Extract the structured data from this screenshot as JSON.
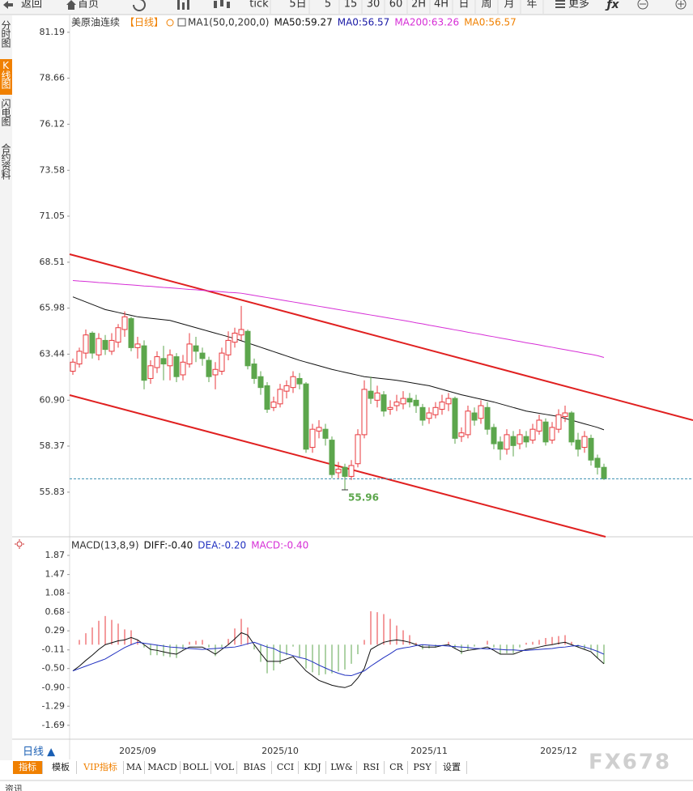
{
  "toolbar": {
    "back": "返回",
    "home": "首页",
    "periods": [
      "tick",
      "5日",
      "5",
      "15",
      "30",
      "60",
      "2H",
      "4H",
      "日",
      "周",
      "月",
      "年"
    ],
    "more": "更多"
  },
  "sidebar": [
    "分时图",
    "K线图",
    "闪电图",
    "合约资料"
  ],
  "chart_data": [
    {
      "type": "candlestick",
      "title": "美原油连续",
      "period": "【日线】",
      "indicator": "MA1(50,0,200,0)",
      "period_button": "日线 ▲",
      "categories": [
        null,
        null,
        null,
        null,
        null,
        null,
        null,
        null,
        null,
        null,
        "2025/09",
        null,
        null,
        null,
        null,
        null,
        null,
        null,
        null,
        null,
        null,
        null,
        null,
        null,
        null,
        null,
        null,
        null,
        null,
        null,
        null,
        null,
        "2025/10",
        null,
        null,
        null,
        null,
        null,
        null,
        null,
        null,
        null,
        null,
        null,
        null,
        null,
        null,
        null,
        null,
        null,
        null,
        null,
        null,
        null,
        null,
        "2025/11",
        null,
        null,
        null,
        null,
        null,
        null,
        null,
        null,
        null,
        null,
        null,
        null,
        null,
        null,
        null,
        null,
        null,
        null,
        null,
        "2025/12",
        null,
        null,
        null,
        null,
        null,
        null,
        null
      ],
      "ylim": [
        53.37,
        81.72
      ],
      "yticks": [
        81.19,
        78.66,
        76.12,
        73.58,
        71.05,
        68.51,
        65.98,
        63.44,
        {
          "value": 60.9,
          "label": "60.90"
        },
        58.37,
        55.83
      ],
      "up_color": "#e8383d",
      "down_color": "#5ca64c",
      "candles": {
        "open": [
          62.5,
          62.9,
          63.5,
          64.6,
          63.4,
          64.2,
          63.6,
          64.1,
          64.8,
          65.4,
          63.8,
          63.9,
          62.1,
          62.7,
          63.2,
          62.8,
          63.3,
          62.3,
          62.9,
          63.9,
          63.5,
          63.1,
          62.3,
          62.5,
          63.4,
          64.1,
          64.5,
          64.7,
          62.9,
          62.2,
          61.7,
          60.5,
          60.7,
          61.4,
          61.6,
          62.1,
          61.8,
          58.3,
          59.2,
          59.3,
          58.7,
          56.9,
          57.2,
          56.7,
          57.4,
          59.0,
          61.4,
          60.9,
          61.2,
          60.4,
          60.6,
          60.7,
          61.0,
          60.9,
          60.5,
          59.9,
          60.1,
          60.4,
          60.7,
          61.0,
          58.9,
          59.0,
          60.2,
          59.9,
          60.5,
          59.4,
          58.6,
          58.2,
          58.9,
          58.5,
          58.9,
          58.7,
          59.2,
          59.7,
          58.7,
          59.3,
          60.0,
          60.2,
          58.7,
          58.3,
          58.8,
          57.7,
          57.2
        ],
        "high": [
          63.2,
          63.8,
          64.8,
          64.7,
          64.6,
          64.5,
          64.6,
          65.1,
          65.8,
          65.5,
          64.4,
          64.2,
          63.1,
          63.6,
          63.9,
          63.7,
          63.5,
          63.4,
          64.6,
          64.4,
          63.8,
          63.3,
          63.0,
          63.8,
          64.7,
          64.9,
          66.1,
          64.8,
          63.2,
          62.5,
          61.9,
          61.1,
          61.8,
          62.0,
          62.5,
          62.4,
          61.9,
          59.6,
          59.8,
          59.6,
          58.9,
          57.5,
          57.4,
          57.6,
          59.3,
          62.0,
          62.2,
          61.7,
          61.4,
          60.9,
          61.2,
          61.4,
          61.3,
          61.2,
          60.7,
          60.5,
          60.8,
          61.2,
          61.3,
          61.1,
          59.4,
          60.6,
          60.5,
          60.9,
          60.8,
          59.6,
          58.9,
          59.3,
          59.2,
          59.3,
          59.2,
          59.6,
          60.1,
          59.9,
          59.7,
          60.4,
          60.6,
          60.3,
          59.1,
          59.2,
          59.0,
          57.9,
          57.4
        ],
        "low": [
          62.3,
          62.7,
          63.2,
          63.2,
          63.1,
          63.4,
          63.4,
          63.8,
          64.4,
          63.6,
          63.2,
          61.5,
          61.8,
          62.4,
          62.0,
          62.0,
          61.9,
          62.0,
          62.7,
          63.0,
          62.8,
          61.9,
          61.5,
          62.3,
          63.1,
          63.8,
          64.2,
          62.6,
          61.8,
          61.2,
          60.2,
          60.3,
          60.5,
          61.0,
          61.3,
          61.5,
          58.0,
          58.0,
          58.8,
          58.4,
          56.6,
          56.6,
          55.96,
          56.5,
          57.2,
          58.8,
          60.7,
          60.5,
          60.0,
          60.1,
          60.3,
          60.4,
          60.5,
          60.2,
          59.5,
          59.6,
          59.9,
          60.1,
          60.3,
          58.5,
          58.6,
          58.8,
          59.5,
          59.6,
          59.0,
          58.2,
          57.6,
          57.9,
          57.8,
          58.2,
          58.3,
          58.5,
          59.0,
          58.4,
          58.5,
          59.1,
          59.7,
          58.4,
          57.8,
          58.0,
          57.3,
          56.8,
          56.5
        ],
        "close": [
          63.0,
          63.6,
          64.5,
          63.5,
          64.3,
          63.7,
          64.2,
          64.9,
          65.5,
          63.8,
          64.0,
          62.0,
          62.8,
          63.3,
          62.9,
          63.4,
          62.2,
          63.0,
          64.0,
          63.6,
          63.2,
          62.2,
          62.6,
          63.5,
          64.2,
          64.6,
          64.8,
          62.8,
          62.1,
          61.6,
          60.4,
          60.8,
          61.5,
          61.7,
          62.2,
          61.8,
          58.2,
          59.3,
          59.4,
          58.8,
          56.8,
          57.1,
          56.7,
          57.3,
          59.0,
          61.5,
          61.0,
          61.3,
          60.3,
          60.5,
          60.8,
          61.0,
          60.8,
          60.6,
          59.8,
          60.2,
          60.5,
          60.8,
          61.0,
          58.8,
          59.1,
          60.3,
          59.8,
          60.6,
          59.3,
          58.5,
          58.2,
          59.0,
          58.4,
          59.0,
          58.6,
          59.3,
          59.8,
          58.6,
          59.4,
          60.1,
          60.2,
          58.6,
          58.2,
          58.9,
          57.6,
          57.2,
          56.57
        ]
      },
      "low_annotation_index": 42,
      "series": [
        {
          "name": "MA50:59.27",
          "color": "#111111",
          "values": [
            66.6,
            66.46,
            66.32,
            66.18,
            66.04,
            65.9,
            65.82,
            65.74,
            65.66,
            65.58,
            65.5,
            65.46,
            65.42,
            65.38,
            65.34,
            65.3,
            65.2,
            65.1,
            65.0,
            64.9,
            64.8,
            64.7,
            64.6,
            64.5,
            64.4,
            64.3,
            64.18,
            64.06,
            63.94,
            63.82,
            63.7,
            63.58,
            63.46,
            63.34,
            63.22,
            63.1,
            63.0,
            62.9,
            62.8,
            62.7,
            62.6,
            62.52,
            62.44,
            62.36,
            62.28,
            62.2,
            62.16,
            62.12,
            62.08,
            62.04,
            62.0,
            61.94,
            61.88,
            61.82,
            61.76,
            61.7,
            61.6,
            61.5,
            61.4,
            61.3,
            61.2,
            61.12,
            61.04,
            60.96,
            60.88,
            60.8,
            60.7,
            60.6,
            60.5,
            60.4,
            60.3,
            60.24,
            60.18,
            60.12,
            60.06,
            60.0,
            59.9,
            59.8,
            59.7,
            59.6,
            59.5,
            59.4,
            59.27
          ]
        },
        {
          "name": "MA200:63.26",
          "color": "#d62ed6",
          "values": [
            67.5,
            67.47,
            67.45,
            67.42,
            67.39,
            67.37,
            67.34,
            67.31,
            67.28,
            67.26,
            67.23,
            67.2,
            67.18,
            67.15,
            67.12,
            67.1,
            67.07,
            67.04,
            67.01,
            66.99,
            66.96,
            66.93,
            66.91,
            66.88,
            66.85,
            66.83,
            66.8,
            66.74,
            66.68,
            66.62,
            66.56,
            66.5,
            66.44,
            66.38,
            66.32,
            66.26,
            66.2,
            66.14,
            66.08,
            66.02,
            65.96,
            65.9,
            65.84,
            65.78,
            65.72,
            65.66,
            65.6,
            65.54,
            65.48,
            65.42,
            65.36,
            65.3,
            65.24,
            65.17,
            65.11,
            65.04,
            64.98,
            64.91,
            64.85,
            64.78,
            64.72,
            64.65,
            64.59,
            64.53,
            64.46,
            64.4,
            64.33,
            64.27,
            64.2,
            64.14,
            64.07,
            64.01,
            63.95,
            63.88,
            63.82,
            63.75,
            63.69,
            63.62,
            63.56,
            63.49,
            63.43,
            63.36,
            63.26
          ]
        }
      ],
      "legend_only": [
        {
          "name": "MA0:56.57",
          "color": "#1a1aa6"
        },
        {
          "name": "MA0:56.57",
          "color": "#f08000"
        }
      ]
    },
    {
      "type": "macd",
      "title": "MACD(13,8,9)",
      "ylim": [
        -1.93,
        2.04
      ],
      "yticks": [
        1.87,
        1.47,
        1.08,
        0.68,
        0.29,
        -0.11,
        {
          "value": -0.5,
          "label": "-0.50"
        },
        {
          "value": -0.9,
          "label": "-0.90"
        },
        -1.29,
        -1.69
      ],
      "series": [
        {
          "name": "DIFF:-0.40",
          "color": "#111111",
          "values": [
            -0.55,
            -0.45,
            -0.33,
            -0.22,
            -0.1,
            0.0,
            0.04,
            0.08,
            0.1,
            0.15,
            0.1,
            0.0,
            -0.1,
            -0.12,
            -0.15,
            -0.18,
            -0.2,
            -0.12,
            -0.05,
            -0.05,
            -0.05,
            -0.12,
            -0.2,
            -0.1,
            0.0,
            0.12,
            0.25,
            0.2,
            0.0,
            -0.18,
            -0.35,
            -0.35,
            -0.35,
            -0.3,
            -0.25,
            -0.4,
            -0.55,
            -0.65,
            -0.75,
            -0.8,
            -0.85,
            -0.88,
            -0.9,
            -0.85,
            -0.7,
            -0.5,
            -0.1,
            -0.02,
            0.05,
            0.08,
            0.1,
            0.08,
            0.05,
            0.0,
            -0.05,
            -0.05,
            -0.05,
            -0.02,
            0.0,
            -0.08,
            -0.15,
            -0.12,
            -0.1,
            -0.08,
            -0.05,
            -0.12,
            -0.2,
            -0.2,
            -0.2,
            -0.15,
            -0.1,
            -0.08,
            -0.05,
            -0.02,
            0.0,
            0.03,
            0.05,
            0.0,
            -0.05,
            -0.1,
            -0.15,
            -0.28,
            -0.4
          ]
        },
        {
          "name": "DEA:-0.20",
          "color": "#2030c0",
          "values": [
            -0.55,
            -0.5,
            -0.45,
            -0.4,
            -0.35,
            -0.3,
            -0.22,
            -0.14,
            -0.06,
            0.0,
            0.05,
            0.03,
            0.01,
            -0.01,
            -0.03,
            -0.05,
            -0.06,
            -0.07,
            -0.08,
            -0.09,
            -0.1,
            -0.09,
            -0.08,
            -0.07,
            -0.06,
            -0.05,
            -0.02,
            0.02,
            0.05,
            0.0,
            -0.05,
            -0.08,
            -0.15,
            -0.19,
            -0.23,
            -0.27,
            -0.3,
            -0.36,
            -0.43,
            -0.49,
            -0.55,
            -0.6,
            -0.64,
            -0.65,
            -0.6,
            -0.55,
            -0.45,
            -0.36,
            -0.27,
            -0.19,
            -0.1,
            -0.07,
            -0.05,
            -0.02,
            0.0,
            -0.01,
            -0.02,
            -0.02,
            -0.03,
            -0.04,
            -0.05,
            -0.06,
            -0.08,
            -0.08,
            -0.09,
            -0.09,
            -0.1,
            -0.11,
            -0.11,
            -0.12,
            -0.12,
            -0.11,
            -0.1,
            -0.09,
            -0.08,
            -0.06,
            -0.05,
            -0.03,
            -0.02,
            -0.05,
            -0.09,
            -0.14,
            -0.2
          ]
        }
      ],
      "histogram": {
        "name": "MACD:-0.40",
        "color": "#d62ed6",
        "up_color": "#e8383d",
        "down_color": "#5ca64c",
        "values": [
          0,
          0.1,
          0.24,
          0.36,
          0.5,
          0.6,
          0.52,
          0.44,
          0.32,
          0.3,
          0.1,
          -0.06,
          -0.22,
          -0.22,
          -0.24,
          -0.26,
          -0.28,
          -0.1,
          0.06,
          0.08,
          0.1,
          -0.06,
          -0.24,
          -0.06,
          0.12,
          0.34,
          0.54,
          0.36,
          -0.1,
          -0.36,
          -0.6,
          -0.54,
          -0.4,
          -0.22,
          -0.04,
          -0.26,
          -0.5,
          -0.58,
          -0.64,
          -0.62,
          -0.6,
          -0.56,
          -0.52,
          -0.4,
          -0.2,
          0.1,
          0.7,
          0.68,
          0.64,
          0.54,
          0.4,
          0.3,
          0.2,
          0.04,
          -0.1,
          -0.08,
          -0.06,
          0,
          0.06,
          -0.08,
          -0.2,
          -0.12,
          -0.04,
          0,
          0.08,
          -0.06,
          -0.2,
          -0.18,
          -0.18,
          -0.06,
          0.04,
          0.06,
          0.1,
          0.14,
          0.16,
          0.18,
          0.2,
          0.06,
          -0.06,
          -0.1,
          -0.12,
          -0.28,
          -0.4
        ]
      }
    }
  ],
  "tabs": [
    "指标",
    "模板",
    "VIP指标",
    "MA",
    "MACD",
    "BOLL",
    "VOL",
    "BIAS",
    "CCI",
    "KDJ",
    "LW&",
    "RSI",
    "CR",
    "PSY",
    "设置"
  ],
  "watermark": "FX678",
  "news_tab": "资讯"
}
